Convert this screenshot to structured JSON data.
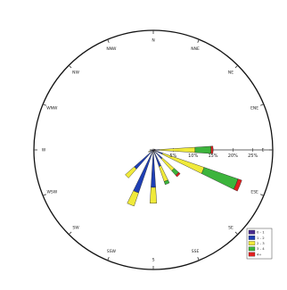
{
  "title": "",
  "colors": {
    "outer_circle": "#111111",
    "axis": "#333333",
    "bin_colors": [
      "#4b2d8f",
      "#1f3fb5",
      "#f0ea3a",
      "#3cb43c",
      "#e02020"
    ]
  },
  "chart_data": {
    "type": "windrose",
    "directions": [
      "N",
      "NNE",
      "NE",
      "ENE",
      "E",
      "ESE",
      "SE",
      "SSE",
      "S",
      "SSW",
      "SW",
      "WSW",
      "W",
      "WNW",
      "NW",
      "NNW"
    ],
    "direction_labels": [
      "N",
      "NNE",
      "NE",
      "ENE",
      "E",
      "ESE",
      "SE",
      "SSE",
      "S",
      "SSW",
      "SW",
      "WSW",
      "W",
      "WNW",
      "NW",
      "NNW"
    ],
    "radial_ticks": [
      5,
      10,
      15,
      20,
      25
    ],
    "radial_tick_labels": [
      "5%",
      "10%",
      "15%",
      "20%",
      "25%"
    ],
    "rmax": 30,
    "legend_labels": [
      "0 - 1",
      "1 - 2",
      "2 - 3",
      "3 - 4",
      "4+"
    ],
    "series": [
      {
        "values": [
          0.3,
          0,
          0,
          0.5,
          1.0,
          1.0,
          0.5,
          0.4,
          0.4,
          0.4,
          0.4,
          0.3,
          0.3,
          0,
          0,
          0
        ]
      },
      {
        "values": [
          0,
          0,
          0,
          0,
          0.5,
          1.5,
          2.5,
          4.0,
          9.0,
          11.0,
          6.0,
          0.5,
          0.3,
          0,
          0,
          0
        ]
      },
      {
        "values": [
          0,
          0,
          0,
          0,
          9.0,
          11.0,
          4.0,
          4.0,
          4.0,
          3.5,
          3.0,
          0.5,
          0.3,
          0,
          0,
          0
        ]
      },
      {
        "values": [
          0,
          0,
          0,
          0,
          4.0,
          9.0,
          1.5,
          0.8,
          0,
          0,
          0,
          0,
          0,
          0,
          0,
          0
        ]
      },
      {
        "values": [
          0,
          0,
          0,
          0,
          0.5,
          1.0,
          0.5,
          0,
          0,
          0,
          0,
          0,
          0,
          0,
          0,
          0
        ]
      }
    ]
  }
}
